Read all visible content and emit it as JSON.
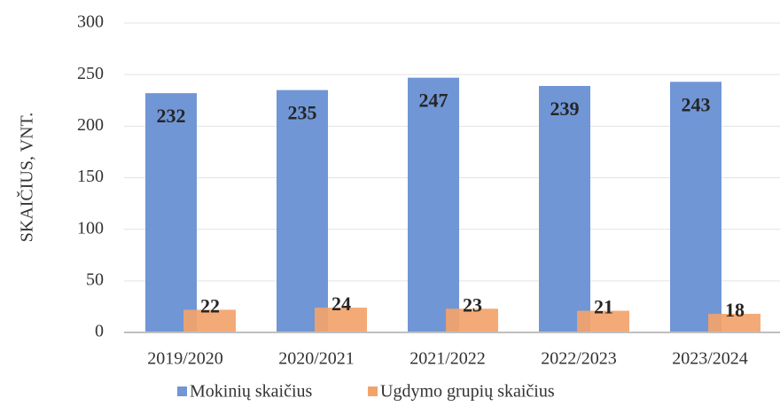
{
  "chart_data": {
    "type": "bar",
    "y_axis_label": "SKAIČIUS, VNT.",
    "categories": [
      "2019/2020",
      "2020/2021",
      "2021/2022",
      "2022/2023",
      "2023/2024"
    ],
    "series": [
      {
        "name": "Mokinių skaičius",
        "color": "#7096d6",
        "values": [
          232,
          235,
          247,
          239,
          243
        ]
      },
      {
        "name": "Ugdymo grupių skaičius",
        "color": "#f2a36a",
        "values": [
          22,
          24,
          23,
          21,
          18
        ]
      }
    ],
    "ylim": [
      0,
      300
    ],
    "yticks": [
      0,
      50,
      100,
      150,
      200,
      250,
      300
    ],
    "grid": true,
    "legend": "bottom"
  }
}
